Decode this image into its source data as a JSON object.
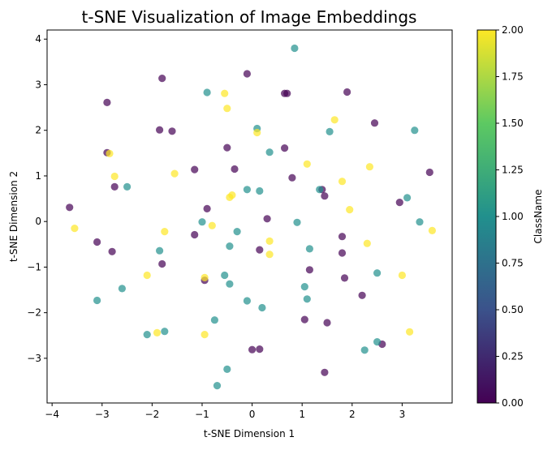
{
  "chart_data": {
    "type": "scatter",
    "title": "t-SNE Visualization of Image Embeddings",
    "xlabel": "t-SNE Dimension 1",
    "ylabel": "t-SNE Dimension 2",
    "xlim": [
      -4.1,
      4.0
    ],
    "ylim": [
      -3.98,
      4.2
    ],
    "xticks": [
      -4,
      -3,
      -2,
      -1,
      0,
      1,
      2,
      3
    ],
    "yticks": [
      -3,
      -2,
      -1,
      0,
      1,
      2,
      3,
      4
    ],
    "grid": false,
    "colorbar": {
      "label": "ClassName",
      "range": [
        0.0,
        2.0
      ],
      "ticks": [
        "0.00",
        "0.25",
        "0.50",
        "0.75",
        "1.00",
        "1.25",
        "1.50",
        "1.75",
        "2.00"
      ],
      "colormap": [
        "#440154",
        "#3b528b",
        "#21908d",
        "#5dc962",
        "#fde725"
      ]
    },
    "marker_alpha": 0.7,
    "class_colors": {
      "0": "#440154",
      "1": "#21908d",
      "2": "#fde725"
    },
    "points": [
      {
        "x": -3.65,
        "y": 0.31,
        "c": 0
      },
      {
        "x": -3.1,
        "y": -0.45,
        "c": 0
      },
      {
        "x": -2.9,
        "y": 2.61,
        "c": 0
      },
      {
        "x": -2.9,
        "y": 1.51,
        "c": 0
      },
      {
        "x": -2.75,
        "y": 0.76,
        "c": 0
      },
      {
        "x": -2.8,
        "y": -0.66,
        "c": 0
      },
      {
        "x": -1.8,
        "y": 3.14,
        "c": 0
      },
      {
        "x": -1.85,
        "y": 2.01,
        "c": 0
      },
      {
        "x": -1.6,
        "y": 1.98,
        "c": 0
      },
      {
        "x": -1.8,
        "y": -0.93,
        "c": 0
      },
      {
        "x": -1.15,
        "y": 1.14,
        "c": 0
      },
      {
        "x": -1.15,
        "y": -0.29,
        "c": 0
      },
      {
        "x": -0.95,
        "y": -1.29,
        "c": 0
      },
      {
        "x": -0.9,
        "y": 0.28,
        "c": 0
      },
      {
        "x": -0.5,
        "y": 1.62,
        "c": 0
      },
      {
        "x": -0.35,
        "y": 1.15,
        "c": 0
      },
      {
        "x": -0.1,
        "y": 3.24,
        "c": 0
      },
      {
        "x": 0.0,
        "y": -2.81,
        "c": 0
      },
      {
        "x": 0.15,
        "y": -2.8,
        "c": 0
      },
      {
        "x": 0.15,
        "y": -0.62,
        "c": 0
      },
      {
        "x": 0.3,
        "y": 0.06,
        "c": 0
      },
      {
        "x": 0.65,
        "y": 2.81,
        "c": 0
      },
      {
        "x": 0.7,
        "y": 2.81,
        "c": 0
      },
      {
        "x": 0.65,
        "y": 1.61,
        "c": 0
      },
      {
        "x": 0.8,
        "y": 0.96,
        "c": 0
      },
      {
        "x": 1.05,
        "y": -2.15,
        "c": 0
      },
      {
        "x": 1.15,
        "y": -1.06,
        "c": 0
      },
      {
        "x": 1.4,
        "y": 0.7,
        "c": 0
      },
      {
        "x": 1.45,
        "y": 0.56,
        "c": 0
      },
      {
        "x": 1.45,
        "y": -3.31,
        "c": 0
      },
      {
        "x": 1.5,
        "y": -2.22,
        "c": 0
      },
      {
        "x": 1.8,
        "y": -0.33,
        "c": 0
      },
      {
        "x": 1.8,
        "y": -0.69,
        "c": 0
      },
      {
        "x": 1.85,
        "y": -1.24,
        "c": 0
      },
      {
        "x": 1.9,
        "y": 2.84,
        "c": 0
      },
      {
        "x": 2.2,
        "y": -1.62,
        "c": 0
      },
      {
        "x": 2.45,
        "y": 2.16,
        "c": 0
      },
      {
        "x": 2.6,
        "y": -2.69,
        "c": 0
      },
      {
        "x": 2.95,
        "y": 0.42,
        "c": 0
      },
      {
        "x": 3.55,
        "y": 1.08,
        "c": 0
      },
      {
        "x": -3.1,
        "y": -1.73,
        "c": 1
      },
      {
        "x": -2.6,
        "y": -1.47,
        "c": 1
      },
      {
        "x": -2.5,
        "y": 0.76,
        "c": 1
      },
      {
        "x": -2.1,
        "y": -2.48,
        "c": 1
      },
      {
        "x": -1.85,
        "y": -0.64,
        "c": 1
      },
      {
        "x": -1.75,
        "y": -2.41,
        "c": 1
      },
      {
        "x": -1.0,
        "y": -0.01,
        "c": 1
      },
      {
        "x": -0.9,
        "y": 2.83,
        "c": 1
      },
      {
        "x": -0.75,
        "y": -2.16,
        "c": 1
      },
      {
        "x": -0.7,
        "y": -3.6,
        "c": 1
      },
      {
        "x": -0.55,
        "y": -1.18,
        "c": 1
      },
      {
        "x": -0.5,
        "y": -3.24,
        "c": 1
      },
      {
        "x": -0.45,
        "y": -0.54,
        "c": 1
      },
      {
        "x": -0.45,
        "y": -1.37,
        "c": 1
      },
      {
        "x": -0.3,
        "y": -0.22,
        "c": 1
      },
      {
        "x": -0.1,
        "y": -1.74,
        "c": 1
      },
      {
        "x": -0.1,
        "y": 0.7,
        "c": 1
      },
      {
        "x": 0.1,
        "y": 2.04,
        "c": 1
      },
      {
        "x": 0.15,
        "y": 0.67,
        "c": 1
      },
      {
        "x": 0.2,
        "y": -1.89,
        "c": 1
      },
      {
        "x": 0.35,
        "y": 1.52,
        "c": 1
      },
      {
        "x": 0.85,
        "y": 3.8,
        "c": 1
      },
      {
        "x": 0.9,
        "y": -0.02,
        "c": 1
      },
      {
        "x": 1.05,
        "y": -1.43,
        "c": 1
      },
      {
        "x": 1.1,
        "y": -1.7,
        "c": 1
      },
      {
        "x": 1.15,
        "y": -0.6,
        "c": 1
      },
      {
        "x": 1.35,
        "y": 0.7,
        "c": 1
      },
      {
        "x": 1.55,
        "y": 1.97,
        "c": 1
      },
      {
        "x": 2.25,
        "y": -2.82,
        "c": 1
      },
      {
        "x": 2.5,
        "y": -2.64,
        "c": 1
      },
      {
        "x": 2.5,
        "y": -1.13,
        "c": 1
      },
      {
        "x": 3.1,
        "y": 0.52,
        "c": 1
      },
      {
        "x": 3.25,
        "y": 2.0,
        "c": 1
      },
      {
        "x": 3.35,
        "y": -0.01,
        "c": 1
      },
      {
        "x": -3.55,
        "y": -0.15,
        "c": 2
      },
      {
        "x": -2.85,
        "y": 1.49,
        "c": 2
      },
      {
        "x": -2.75,
        "y": 0.99,
        "c": 2
      },
      {
        "x": -2.1,
        "y": -1.18,
        "c": 2
      },
      {
        "x": -1.9,
        "y": -2.44,
        "c": 2
      },
      {
        "x": -1.75,
        "y": -0.22,
        "c": 2
      },
      {
        "x": -1.55,
        "y": 1.05,
        "c": 2
      },
      {
        "x": -0.95,
        "y": -2.48,
        "c": 2
      },
      {
        "x": -0.95,
        "y": -1.23,
        "c": 2
      },
      {
        "x": -0.8,
        "y": -0.09,
        "c": 2
      },
      {
        "x": -0.55,
        "y": 2.81,
        "c": 2
      },
      {
        "x": -0.5,
        "y": 2.48,
        "c": 2
      },
      {
        "x": -0.45,
        "y": 0.53,
        "c": 2
      },
      {
        "x": -0.4,
        "y": 0.58,
        "c": 2
      },
      {
        "x": 0.1,
        "y": 1.95,
        "c": 2
      },
      {
        "x": 0.35,
        "y": -0.43,
        "c": 2
      },
      {
        "x": 0.35,
        "y": -0.72,
        "c": 2
      },
      {
        "x": 1.1,
        "y": 1.26,
        "c": 2
      },
      {
        "x": 1.65,
        "y": 2.23,
        "c": 2
      },
      {
        "x": 1.8,
        "y": 0.88,
        "c": 2
      },
      {
        "x": 1.95,
        "y": 0.26,
        "c": 2
      },
      {
        "x": 2.3,
        "y": -0.48,
        "c": 2
      },
      {
        "x": 2.35,
        "y": 1.2,
        "c": 2
      },
      {
        "x": 3.0,
        "y": -1.18,
        "c": 2
      },
      {
        "x": 3.15,
        "y": -2.42,
        "c": 2
      },
      {
        "x": 3.6,
        "y": -0.2,
        "c": 2
      }
    ]
  }
}
